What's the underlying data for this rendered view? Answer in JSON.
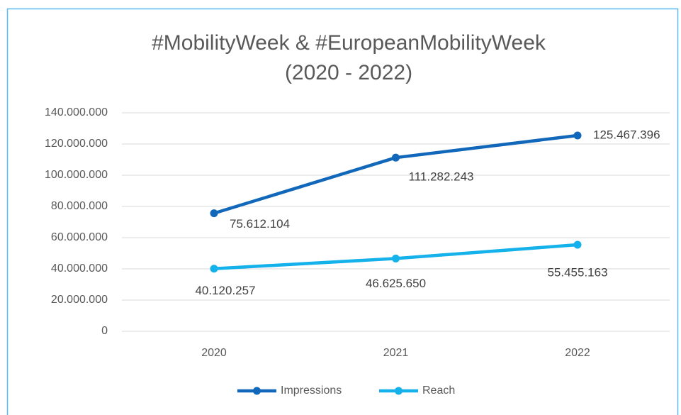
{
  "chart_data": {
    "type": "line",
    "title": [
      "#MobilityWeek & #EuropeanMobilityWeek",
      "(2020 - 2022)"
    ],
    "categories": [
      "2020",
      "2021",
      "2022"
    ],
    "series": [
      {
        "name": "Impressions",
        "color": "#1167b9",
        "values": [
          75612104,
          111282243,
          125467396
        ],
        "value_labels": [
          "75.612.104",
          "111.282.243",
          "125.467.396"
        ]
      },
      {
        "name": "Reach",
        "color": "#14b1eb",
        "values": [
          40120257,
          46625650,
          55455163
        ],
        "value_labels": [
          "40.120.257",
          "46.625.650",
          "55.455.163"
        ]
      }
    ],
    "ylim": [
      0,
      140000000
    ],
    "yticks": [
      0,
      {
        "value": 20000000,
        "label": "20.000.000"
      },
      {
        "value": 40000000,
        "label": "40.000.000"
      },
      {
        "value": 60000000,
        "label": "60.000.000"
      },
      {
        "value": 80000000,
        "label": "80.000.000"
      },
      {
        "value": 100000000,
        "label": "100.000.000"
      },
      {
        "value": 120000000,
        "label": "120.000.000"
      },
      {
        "value": 140000000,
        "label": "140.000.000"
      }
    ],
    "grid": true,
    "legend": "bottom"
  }
}
